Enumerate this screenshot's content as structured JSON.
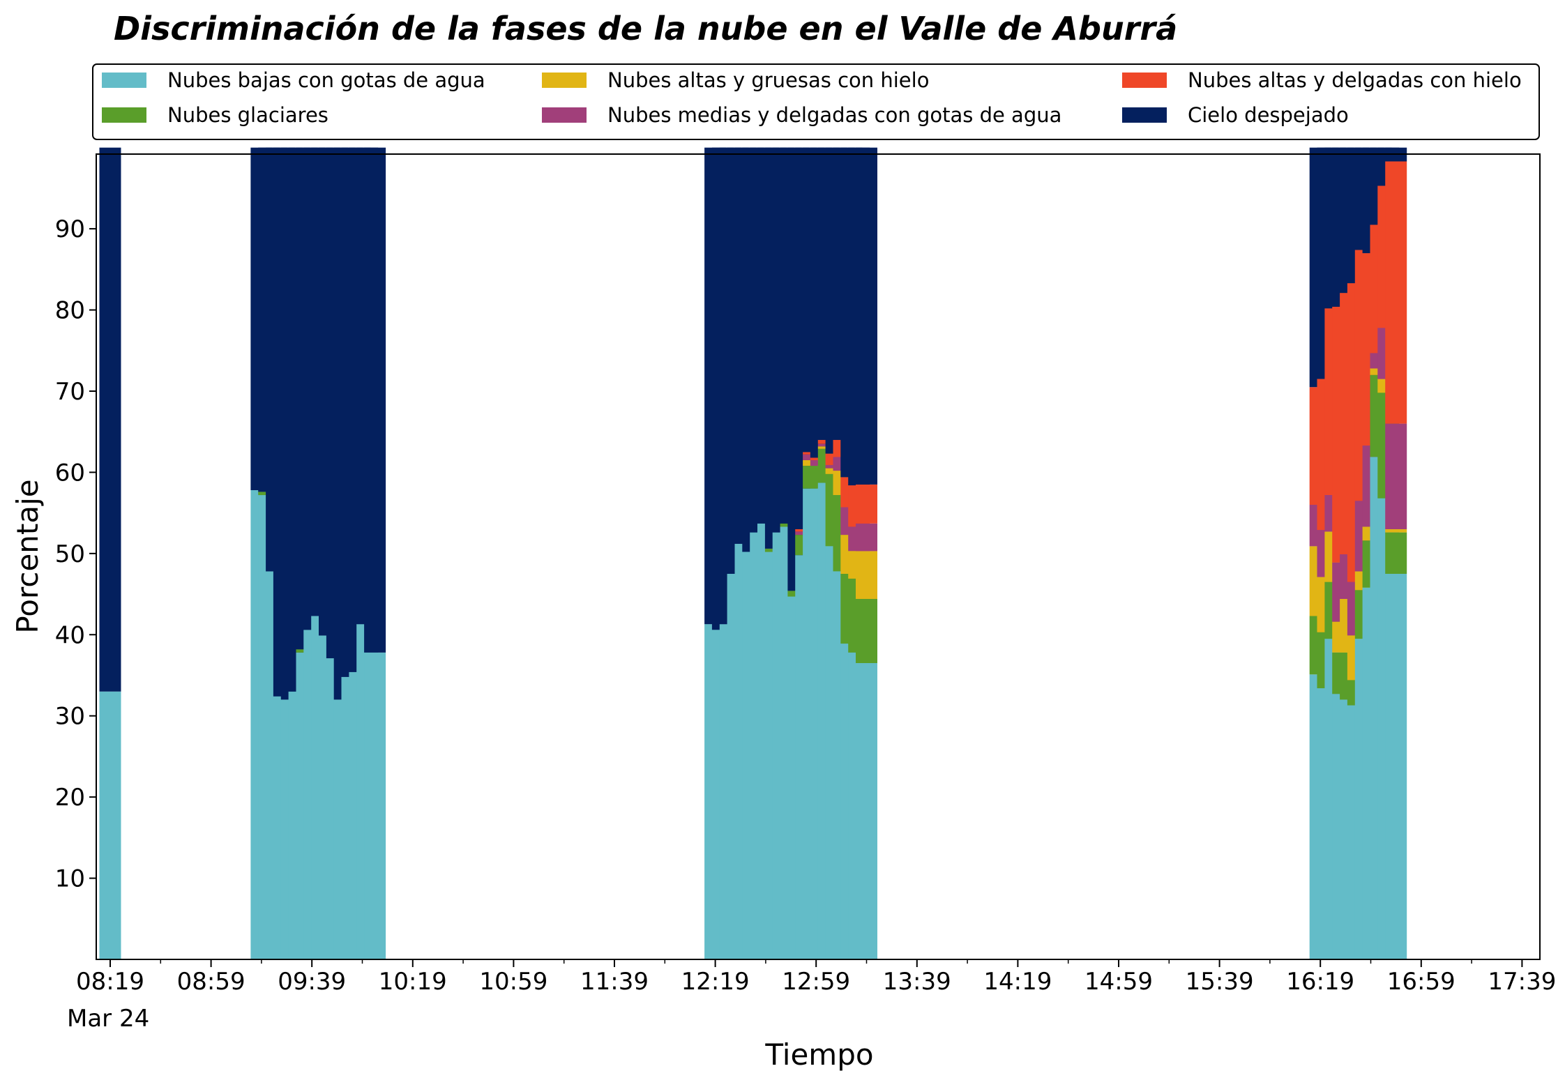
{
  "chart_data": {
    "type": "bar",
    "stacked": true,
    "title": "Discriminación de la fases de la nube en el Valle de Aburrá",
    "xlabel": "Tiempo",
    "ylabel": "Porcentaje",
    "ylim": [
      0,
      100
    ],
    "yticks": [
      10,
      20,
      30,
      40,
      50,
      60,
      70,
      80,
      90
    ],
    "x_start_time": "08:19",
    "x_step_minutes": 5,
    "x_tick_labels": [
      "08:19",
      "08:59",
      "09:39",
      "10:19",
      "10:59",
      "11:39",
      "12:19",
      "12:59",
      "13:39",
      "14:19",
      "14:59",
      "15:39",
      "16:19",
      "16:59",
      "17:39"
    ],
    "x_date_label": "Mar 24",
    "legend_position": "top",
    "x": [
      "08:19",
      "08:24",
      "08:29",
      "08:34",
      "08:39",
      "08:44",
      "08:49",
      "08:54",
      "08:59",
      "09:04",
      "09:09",
      "09:14",
      "09:19",
      "09:24",
      "09:29",
      "09:34",
      "09:39",
      "09:44",
      "09:49",
      "09:54",
      "09:59",
      "10:04",
      "10:09",
      "10:14",
      "10:19",
      "10:24",
      "10:29",
      "10:34",
      "10:39",
      "10:44",
      "10:49",
      "10:54",
      "10:59",
      "11:04",
      "11:09",
      "11:14",
      "11:19",
      "11:24",
      "11:29",
      "11:34",
      "11:39",
      "11:44",
      "11:49",
      "11:54",
      "11:59",
      "12:04",
      "12:09",
      "12:14",
      "12:19",
      "12:24",
      "12:29",
      "12:34",
      "12:39",
      "12:44",
      "12:49",
      "12:54",
      "12:59",
      "13:04",
      "13:09",
      "13:14",
      "13:19",
      "13:24",
      "13:29",
      "13:34",
      "13:39",
      "13:44",
      "13:49",
      "13:54",
      "13:59",
      "14:04",
      "14:09",
      "14:14",
      "14:19",
      "14:24",
      "14:29",
      "14:34",
      "14:39",
      "14:44",
      "14:49",
      "14:54",
      "14:59",
      "15:04",
      "15:09",
      "15:14",
      "15:19",
      "15:24",
      "15:29",
      "15:34",
      "15:39",
      "15:44",
      "15:49",
      "15:54",
      "15:59",
      "16:04",
      "16:09",
      "16:14",
      "16:19",
      "16:24",
      "16:29",
      "16:34",
      "16:39",
      "16:44",
      "16:49",
      "16:54",
      "16:59",
      "17:04",
      "17:09",
      "17:14",
      "17:19",
      "17:24",
      "17:29",
      "17:34",
      "17:39",
      "17:44"
    ],
    "bars": [
      {
        "time": "08:19",
        "values": [
          33.0,
          0,
          0,
          0,
          0,
          67.0
        ]
      },
      {
        "time": "09:19",
        "values": [
          57.8,
          0,
          0,
          0,
          0,
          42.2
        ]
      },
      {
        "time": "09:22",
        "values": [
          57.2,
          0.4,
          0,
          0,
          0,
          42.4
        ]
      },
      {
        "time": "09:25",
        "values": [
          47.8,
          0,
          0,
          0,
          0,
          52.2
        ]
      },
      {
        "time": "09:28",
        "values": [
          32.4,
          0,
          0,
          0,
          0,
          67.6
        ]
      },
      {
        "time": "09:31",
        "values": [
          32.0,
          0,
          0,
          0,
          0,
          68.0
        ]
      },
      {
        "time": "09:34",
        "values": [
          33.0,
          0,
          0,
          0,
          0,
          67.0
        ]
      },
      {
        "time": "09:37",
        "values": [
          37.8,
          0.4,
          0,
          0,
          0,
          61.8
        ]
      },
      {
        "time": "09:40",
        "values": [
          40.6,
          0,
          0,
          0,
          0,
          59.4
        ]
      },
      {
        "time": "09:43",
        "values": [
          42.3,
          0,
          0,
          0,
          0,
          57.7
        ]
      },
      {
        "time": "09:46",
        "values": [
          39.9,
          0,
          0,
          0,
          0,
          60.1
        ]
      },
      {
        "time": "09:49",
        "values": [
          37.1,
          0,
          0,
          0,
          0,
          62.9
        ]
      },
      {
        "time": "09:52",
        "values": [
          32.0,
          0,
          0,
          0,
          0,
          68.0
        ]
      },
      {
        "time": "09:55",
        "values": [
          34.8,
          0,
          0,
          0,
          0,
          65.2
        ]
      },
      {
        "time": "09:58",
        "values": [
          35.4,
          0,
          0,
          0,
          0,
          64.6
        ]
      },
      {
        "time": "10:01",
        "values": [
          41.3,
          0,
          0,
          0,
          0,
          58.7
        ]
      },
      {
        "time": "10:04",
        "values": [
          37.8,
          0,
          0,
          0,
          0,
          62.2
        ]
      },
      {
        "time": "12:19",
        "values": [
          41.3,
          0,
          0,
          0,
          0,
          58.7
        ]
      },
      {
        "time": "12:22",
        "values": [
          40.6,
          0,
          0,
          0,
          0,
          59.4
        ]
      },
      {
        "time": "12:25",
        "values": [
          41.3,
          0,
          0,
          0,
          0,
          58.7
        ]
      },
      {
        "time": "12:28",
        "values": [
          47.5,
          0,
          0,
          0,
          0,
          52.5
        ]
      },
      {
        "time": "12:31",
        "values": [
          51.2,
          0,
          0,
          0,
          0,
          48.8
        ]
      },
      {
        "time": "12:34",
        "values": [
          50.2,
          0,
          0,
          0,
          0,
          49.8
        ]
      },
      {
        "time": "12:37",
        "values": [
          52.6,
          0,
          0,
          0,
          0,
          47.4
        ]
      },
      {
        "time": "12:40",
        "values": [
          53.7,
          0,
          0,
          0,
          0,
          46.3
        ]
      },
      {
        "time": "12:43",
        "values": [
          50.2,
          0.4,
          0,
          0,
          0,
          49.4
        ]
      },
      {
        "time": "12:46",
        "values": [
          52.6,
          0,
          0,
          0,
          0,
          47.4
        ]
      },
      {
        "time": "12:49",
        "values": [
          53.3,
          0.4,
          0,
          0,
          0,
          46.3
        ]
      },
      {
        "time": "12:52",
        "values": [
          44.7,
          0.7,
          0,
          0,
          0,
          54.6
        ]
      },
      {
        "time": "12:55",
        "values": [
          49.8,
          2.5,
          0,
          0.4,
          0.3,
          47.0
        ]
      },
      {
        "time": "12:58",
        "values": [
          58.0,
          2.8,
          0.7,
          0.7,
          0.3,
          37.5
        ]
      },
      {
        "time": "13:01",
        "values": [
          58.0,
          2.8,
          0,
          0.7,
          0.3,
          38.2
        ]
      },
      {
        "time": "13:04",
        "values": [
          58.7,
          4.2,
          0.3,
          0.3,
          0.5,
          36.0
        ]
      },
      {
        "time": "13:07",
        "values": [
          50.9,
          8.9,
          0.7,
          0.4,
          1.4,
          37.7
        ]
      },
      {
        "time": "13:10",
        "values": [
          47.8,
          9.4,
          3.0,
          1.7,
          2.1,
          36.0
        ]
      },
      {
        "time": "13:13",
        "values": [
          38.9,
          8.6,
          4.8,
          3.4,
          3.7,
          40.6
        ]
      },
      {
        "time": "13:16",
        "values": [
          37.8,
          9.1,
          3.4,
          3.0,
          5.1,
          41.6
        ]
      },
      {
        "time": "13:19",
        "values": [
          36.5,
          7.9,
          5.9,
          3.4,
          4.8,
          41.5
        ]
      },
      {
        "time": "16:19",
        "values": [
          35.1,
          7.2,
          8.6,
          5.1,
          14.5,
          29.5
        ]
      },
      {
        "time": "16:22",
        "values": [
          33.4,
          6.9,
          6.8,
          5.8,
          18.6,
          28.5
        ]
      },
      {
        "time": "16:25",
        "values": [
          39.5,
          7.0,
          6.2,
          4.5,
          23.0,
          19.8
        ]
      },
      {
        "time": "16:28",
        "values": [
          32.7,
          5.1,
          3.8,
          7.3,
          31.5,
          19.6
        ]
      },
      {
        "time": "16:31",
        "values": [
          32.0,
          5.8,
          6.6,
          5.5,
          32.2,
          17.9
        ]
      },
      {
        "time": "16:34",
        "values": [
          31.3,
          3.1,
          5.5,
          6.6,
          36.8,
          16.7
        ]
      },
      {
        "time": "16:37",
        "values": [
          39.5,
          6.0,
          2.3,
          8.7,
          30.9,
          12.6
        ]
      },
      {
        "time": "16:40",
        "values": [
          45.8,
          5.8,
          1.7,
          10.0,
          23.7,
          13.0
        ]
      },
      {
        "time": "16:43",
        "values": [
          61.9,
          10.1,
          0.8,
          1.9,
          15.8,
          9.5
        ]
      },
      {
        "time": "16:46",
        "values": [
          56.8,
          13.0,
          1.7,
          6.3,
          17.5,
          4.7
        ]
      },
      {
        "time": "16:49",
        "values": [
          47.5,
          5.1,
          0.4,
          13.0,
          32.3,
          1.7
        ]
      }
    ],
    "series": [
      {
        "name": "Nubes bajas con gotas de agua",
        "color": "#63bcc8"
      },
      {
        "name": "Nubes glaciares",
        "color": "#5a9e2a"
      },
      {
        "name": "Nubes altas y gruesas con hielo",
        "color": "#e1b515"
      },
      {
        "name": "Nubes medias y delgadas con gotas de agua",
        "color": "#a13f7a"
      },
      {
        "name": "Nubes altas y delgadas con hielo",
        "color": "#ef4728"
      },
      {
        "name": "Cielo despejado",
        "color": "#04205e"
      }
    ]
  }
}
